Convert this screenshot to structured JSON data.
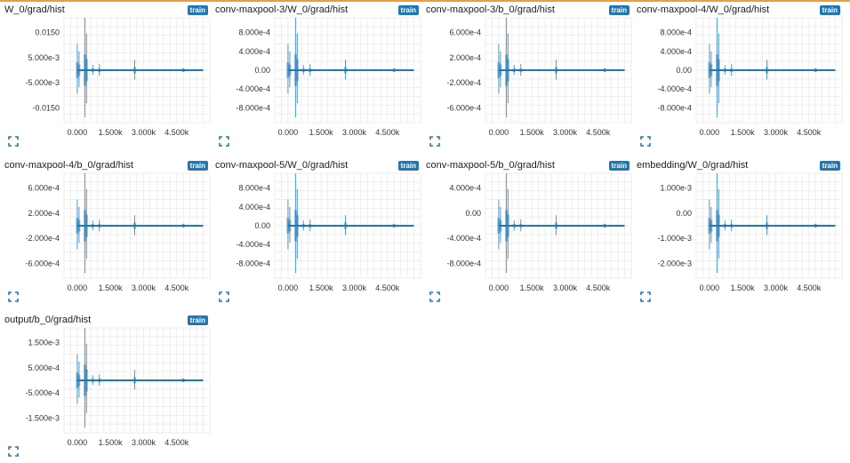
{
  "badge_label": "train",
  "series_color": "#1f77b4",
  "icons": {
    "expand": "expand-icon"
  },
  "x_ticks": [
    "0.000",
    "1.500k",
    "3.000k",
    "4.500k"
  ],
  "chart_data": [
    {
      "type": "line",
      "title": "W_0/grad/hist",
      "y_ticks": [
        "0.0150",
        "5.000e-3",
        "-5.000e-3",
        "-0.0150"
      ],
      "ylim": [
        -0.02,
        0.02
      ],
      "x_ticks": [
        "0.000",
        "1.500k",
        "3.000k",
        "4.500k"
      ],
      "xlim": [
        -600,
        6000
      ]
    },
    {
      "type": "line",
      "title": "conv-maxpool-3/W_0/grad/hist",
      "y_ticks": [
        "8.000e-4",
        "4.000e-4",
        "0.00",
        "-4.000e-4",
        "-8.000e-4"
      ],
      "ylim": [
        -0.001,
        0.001
      ],
      "x_ticks": [
        "0.000",
        "1.500k",
        "3.000k",
        "4.500k"
      ],
      "xlim": [
        -600,
        6000
      ]
    },
    {
      "type": "line",
      "title": "conv-maxpool-3/b_0/grad/hist",
      "y_ticks": [
        "6.000e-4",
        "2.000e-4",
        "-2.000e-4",
        "-6.000e-4"
      ],
      "ylim": [
        -0.0008,
        0.0008
      ],
      "x_ticks": [
        "0.000",
        "1.500k",
        "3.000k",
        "4.500k"
      ],
      "xlim": [
        -600,
        6000
      ]
    },
    {
      "type": "line",
      "title": "conv-maxpool-4/W_0/grad/hist",
      "y_ticks": [
        "8.000e-4",
        "4.000e-4",
        "0.00",
        "-4.000e-4",
        "-8.000e-4"
      ],
      "ylim": [
        -0.001,
        0.001
      ],
      "x_ticks": [
        "0.000",
        "1.500k",
        "3.000k",
        "4.500k"
      ],
      "xlim": [
        -600,
        6000
      ]
    },
    {
      "type": "line",
      "title": "conv-maxpool-4/b_0/grad/hist",
      "y_ticks": [
        "6.000e-4",
        "2.000e-4",
        "-2.000e-4",
        "-6.000e-4"
      ],
      "ylim": [
        -0.0008,
        0.0008
      ],
      "x_ticks": [
        "0.000",
        "1.500k",
        "3.000k",
        "4.500k"
      ],
      "xlim": [
        -600,
        6000
      ]
    },
    {
      "type": "line",
      "title": "conv-maxpool-5/W_0/grad/hist",
      "y_ticks": [
        "8.000e-4",
        "4.000e-4",
        "0.00",
        "-4.000e-4",
        "-8.000e-4"
      ],
      "ylim": [
        -0.001,
        0.001
      ],
      "x_ticks": [
        "0.000",
        "1.500k",
        "3.000k",
        "4.500k"
      ],
      "xlim": [
        -600,
        6000
      ]
    },
    {
      "type": "line",
      "title": "conv-maxpool-5/b_0/grad/hist",
      "y_ticks": [
        "4.000e-4",
        "0.00",
        "-4.000e-4",
        "-8.000e-4"
      ],
      "ylim": [
        -0.001,
        0.0006
      ],
      "x_ticks": [
        "0.000",
        "1.500k",
        "3.000k",
        "4.500k"
      ],
      "xlim": [
        -600,
        6000
      ]
    },
    {
      "type": "line",
      "title": "embedding/W_0/grad/hist",
      "y_ticks": [
        "1.000e-3",
        "0.00",
        "-1.000e-3",
        "-2.000e-3"
      ],
      "ylim": [
        -0.0025,
        0.0015
      ],
      "x_ticks": [
        "0.000",
        "1.500k",
        "3.000k",
        "4.500k"
      ],
      "xlim": [
        -600,
        6000
      ]
    },
    {
      "type": "line",
      "title": "output/b_0/grad/hist",
      "y_ticks": [
        "1.500e-3",
        "5.000e-4",
        "-5.000e-4",
        "-1.500e-3"
      ],
      "ylim": [
        -0.002,
        0.002
      ],
      "x_ticks": [
        "0.000",
        "1.500k",
        "3.000k",
        "4.500k"
      ],
      "xlim": [
        -600,
        6000
      ]
    }
  ]
}
